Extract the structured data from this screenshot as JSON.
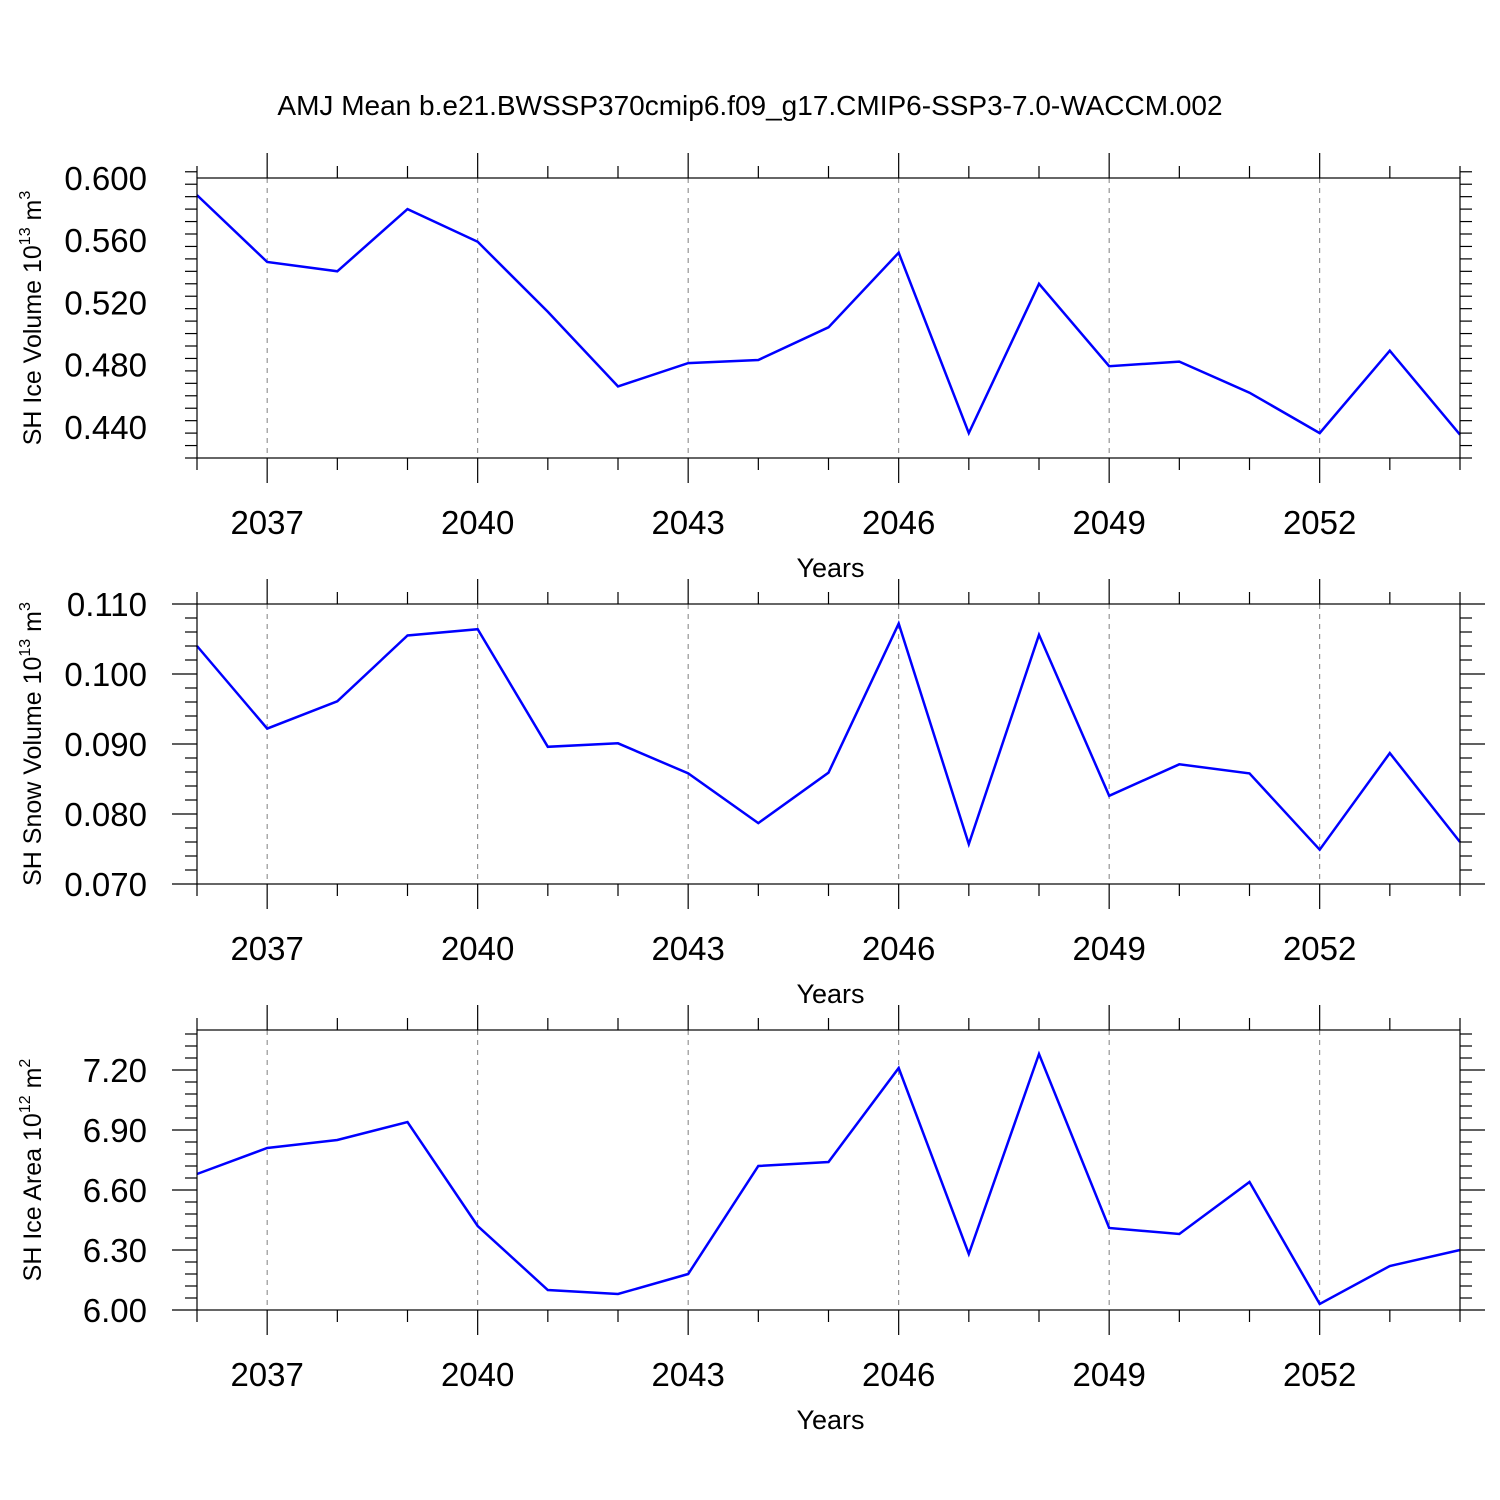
{
  "title": "AMJ Mean b.e21.BWSSP370cmip6.f09_g17.CMIP6-SSP3-7.0-WACCM.002",
  "colors": {
    "line": "#0000ff",
    "axis": "#000000",
    "grid": "#808080"
  },
  "chart_data": [
    {
      "type": "line",
      "ylabel": {
        "main": "SH Ice Volume 10",
        "exp": "13",
        "unit": " m",
        "unit_exp": "3"
      },
      "xlabel": "Years",
      "x": [
        2036,
        2037,
        2038,
        2039,
        2040,
        2041,
        2042,
        2043,
        2044,
        2045,
        2046,
        2047,
        2048,
        2049,
        2050,
        2051,
        2052,
        2053,
        2054
      ],
      "series": [
        {
          "values": [
            0.589,
            0.546,
            0.54,
            0.58,
            0.559,
            0.514,
            0.466,
            0.481,
            0.483,
            0.504,
            0.552,
            0.436,
            0.532,
            0.479,
            0.482,
            0.462,
            0.436,
            0.489,
            0.435
          ]
        }
      ],
      "xlim": [
        2036,
        2054
      ],
      "ylim": [
        0.42,
        0.6
      ],
      "yticks": [
        0.44,
        0.48,
        0.52,
        0.56,
        0.6
      ],
      "yticklabels": [
        "0.440",
        "0.480",
        "0.520",
        "0.560",
        "0.600"
      ],
      "xticks": [
        2037,
        2040,
        2043,
        2046,
        2049,
        2052
      ],
      "xticklabels": [
        "2037",
        "2040",
        "2043",
        "2046",
        "2049",
        "2052"
      ],
      "grid": "vertical-dashed"
    },
    {
      "type": "line",
      "ylabel": {
        "main": "SH Snow Volume 10",
        "exp": "13",
        "unit": " m",
        "unit_exp": "3"
      },
      "xlabel": "Years",
      "x": [
        2036,
        2037,
        2038,
        2039,
        2040,
        2041,
        2042,
        2043,
        2044,
        2045,
        2046,
        2047,
        2048,
        2049,
        2050,
        2051,
        2052,
        2053,
        2054
      ],
      "series": [
        {
          "values": [
            0.104,
            0.0922,
            0.0961,
            0.1055,
            0.1064,
            0.0896,
            0.0901,
            0.0858,
            0.0787,
            0.0859,
            0.1072,
            0.0757,
            0.1056,
            0.0826,
            0.0871,
            0.0858,
            0.0749,
            0.0887,
            0.076
          ]
        }
      ],
      "xlim": [
        2036,
        2054
      ],
      "ylim": [
        0.07,
        0.11
      ],
      "yticks": [
        0.07,
        0.08,
        0.09,
        0.1,
        0.11
      ],
      "yticklabels": [
        "0.070",
        "0.080",
        "0.090",
        "0.100",
        "0.110"
      ],
      "xticks": [
        2037,
        2040,
        2043,
        2046,
        2049,
        2052
      ],
      "xticklabels": [
        "2037",
        "2040",
        "2043",
        "2046",
        "2049",
        "2052"
      ],
      "grid": "vertical-dashed"
    },
    {
      "type": "line",
      "ylabel": {
        "main": "SH Ice Area 10",
        "exp": "12",
        "unit": " m",
        "unit_exp": "2"
      },
      "xlabel": "Years",
      "x": [
        2036,
        2037,
        2038,
        2039,
        2040,
        2041,
        2042,
        2043,
        2044,
        2045,
        2046,
        2047,
        2048,
        2049,
        2050,
        2051,
        2052,
        2053,
        2054
      ],
      "series": [
        {
          "values": [
            6.68,
            6.81,
            6.85,
            6.94,
            6.42,
            6.1,
            6.08,
            6.18,
            6.72,
            6.74,
            7.21,
            6.28,
            7.28,
            6.41,
            6.38,
            6.64,
            6.03,
            6.22,
            6.3
          ]
        }
      ],
      "xlim": [
        2036,
        2054
      ],
      "ylim": [
        6.0,
        7.4
      ],
      "yticks": [
        6.0,
        6.3,
        6.6,
        6.9,
        7.2
      ],
      "yticklabels": [
        "6.00",
        "6.30",
        "6.60",
        "6.90",
        "7.20"
      ],
      "xticks": [
        2037,
        2040,
        2043,
        2046,
        2049,
        2052
      ],
      "xticklabels": [
        "2037",
        "2040",
        "2043",
        "2046",
        "2049",
        "2052"
      ],
      "grid": "vertical-dashed"
    }
  ]
}
